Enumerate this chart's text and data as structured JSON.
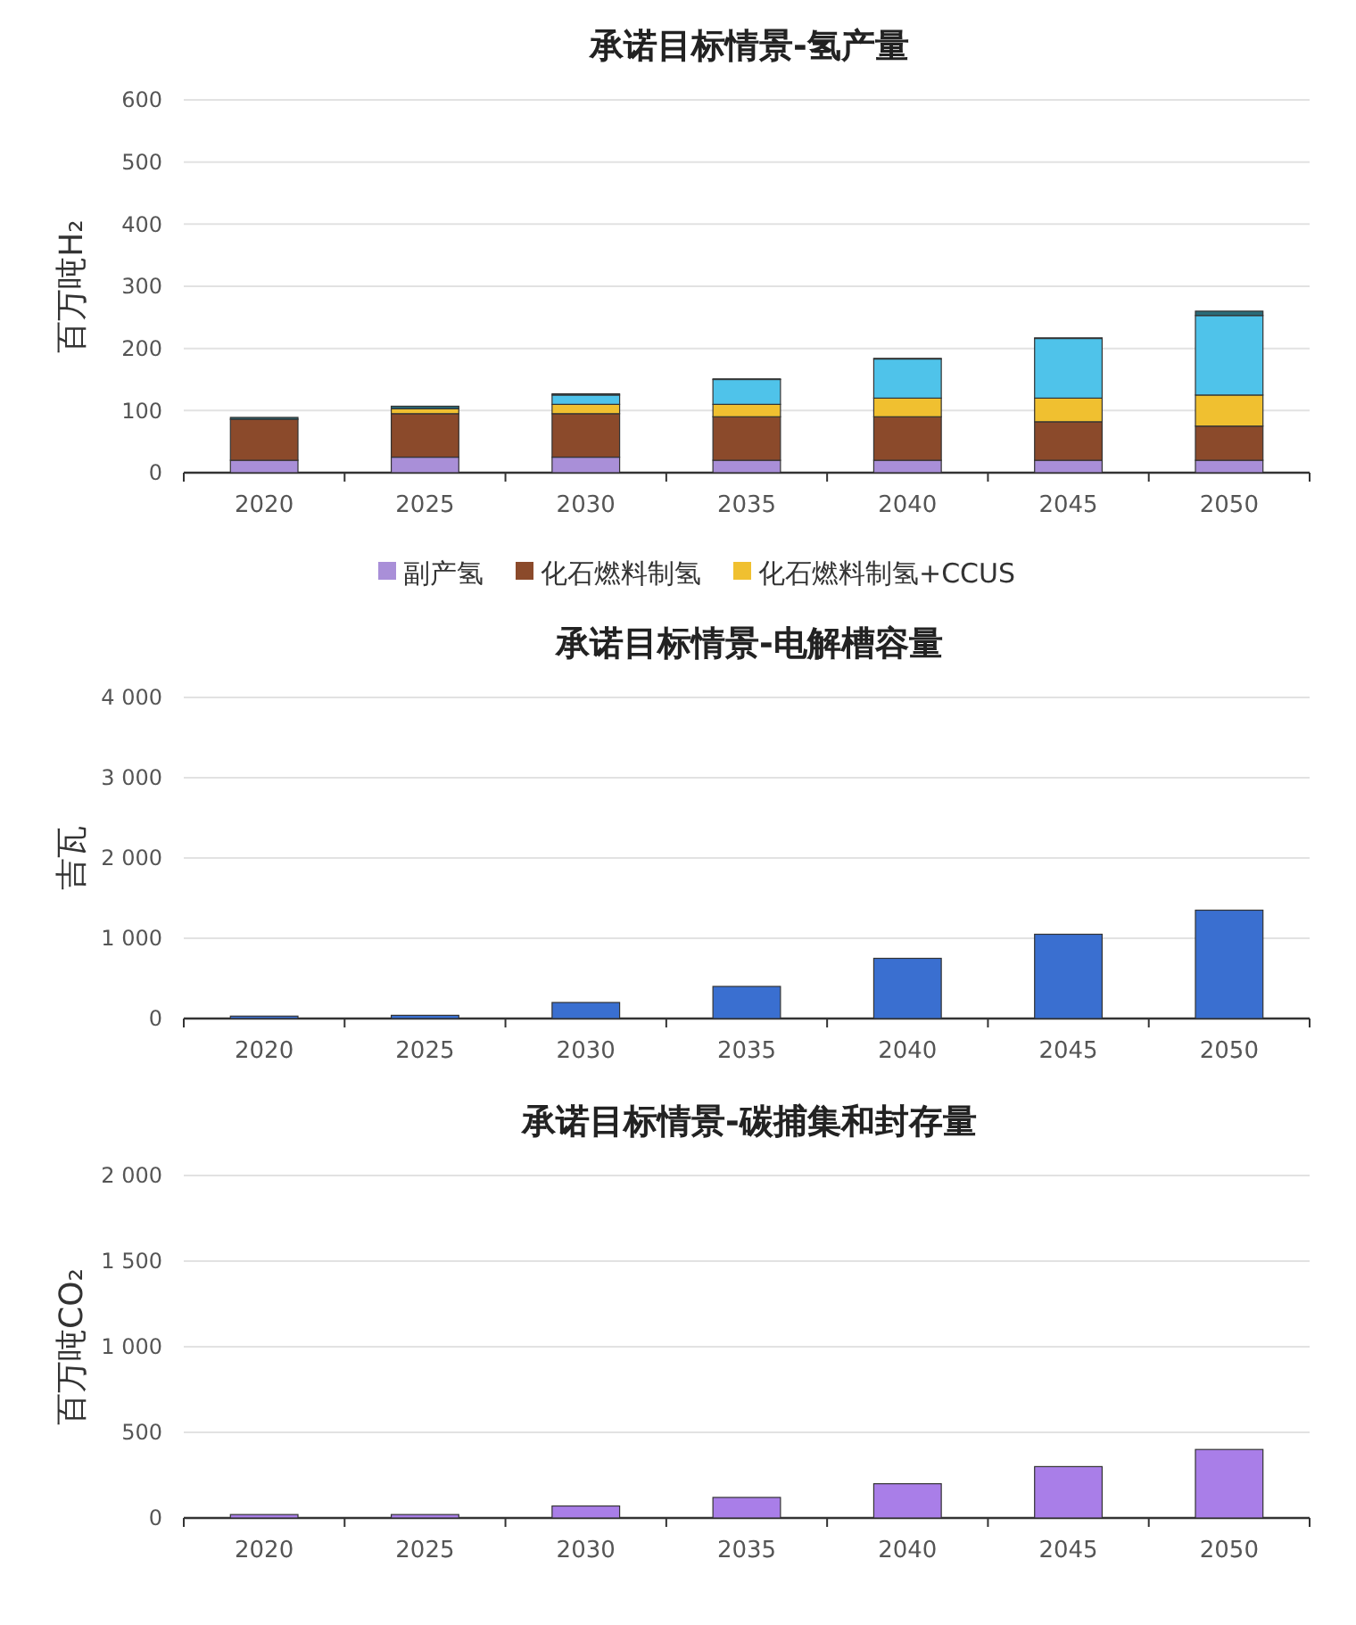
{
  "chart_data": [
    {
      "type": "bar",
      "title": "承诺目标情景-氢产量",
      "ylabel": "百万吨H₂",
      "categories": [
        "2020",
        "2025",
        "2030",
        "2035",
        "2040",
        "2045",
        "2050"
      ],
      "stacked": true,
      "ylim": [
        0,
        600
      ],
      "yticks": [
        0,
        100,
        200,
        300,
        400,
        500,
        600
      ],
      "grid": "y",
      "legend": "bottom",
      "series": [
        {
          "name": "副产氢",
          "color": "#a98fd8",
          "values": [
            20,
            25,
            25,
            20,
            20,
            20,
            20
          ]
        },
        {
          "name": "化石燃料制氢",
          "color": "#8b4a2b",
          "values": [
            66,
            70,
            70,
            70,
            70,
            62,
            55
          ]
        },
        {
          "name": "化石燃料制氢+CCUS",
          "color": "#f0c030",
          "values": [
            0,
            8,
            15,
            20,
            30,
            38,
            50
          ]
        },
        {
          "color": "#4fc3ea",
          "values": [
            0,
            0,
            15,
            40,
            63,
            96,
            128
          ]
        },
        {
          "color": "#2a6b78",
          "values": [
            3,
            4,
            2,
            1,
            1,
            1,
            7
          ]
        }
      ]
    },
    {
      "type": "bar",
      "title": "承诺目标情景-电解槽容量",
      "ylabel": "吉瓦",
      "categories": [
        "2020",
        "2025",
        "2030",
        "2035",
        "2040",
        "2045",
        "2050"
      ],
      "ylim": [
        0,
        4000
      ],
      "yticks": [
        0,
        {
          "value": 1000,
          "label": "1 000"
        },
        {
          "value": 2000,
          "label": "2 000"
        },
        {
          "value": 3000,
          "label": "3 000"
        },
        {
          "value": 4000,
          "label": "4 000"
        }
      ],
      "grid": "y",
      "series": [
        {
          "color": "#3a6fd0",
          "values": [
            30,
            40,
            200,
            400,
            750,
            1050,
            1350
          ]
        }
      ]
    },
    {
      "type": "bar",
      "title": "承诺目标情景-碳捕集和封存量",
      "ylabel": "百万吨CO₂",
      "categories": [
        "2020",
        "2025",
        "2030",
        "2035",
        "2040",
        "2045",
        "2050"
      ],
      "ylim": [
        0,
        2000
      ],
      "yticks": [
        0,
        500,
        {
          "value": 1000,
          "label": "1 000"
        },
        {
          "value": 1500,
          "label": "1 500"
        },
        {
          "value": 2000,
          "label": "2 000"
        }
      ],
      "grid": "y",
      "series": [
        {
          "color": "#a97ee8",
          "values": [
            20,
            20,
            70,
            120,
            200,
            300,
            400
          ]
        }
      ]
    }
  ]
}
